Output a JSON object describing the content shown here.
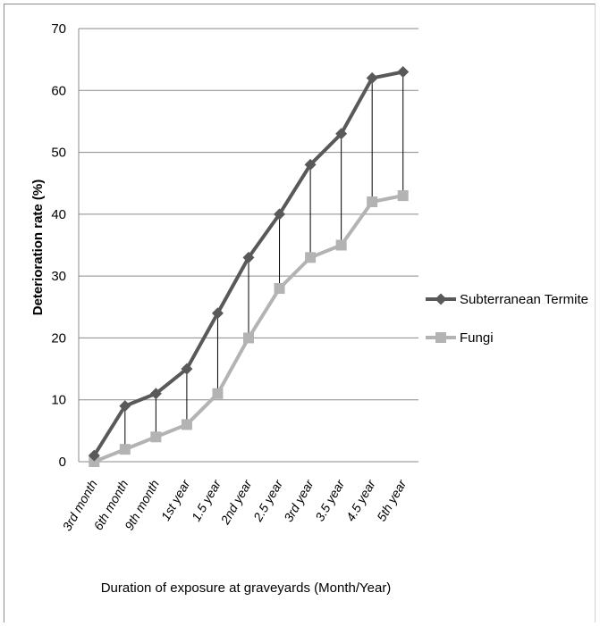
{
  "chart_data": {
    "type": "line",
    "categories": [
      "3rd month",
      "6th month",
      "9th month",
      "1st year",
      "1.5 year",
      "2nd year",
      "2.5 year",
      "3rd year",
      "3.5 year",
      "4.5 year",
      "5th year"
    ],
    "series": [
      {
        "name": "Subterranean Termite",
        "values": [
          1,
          9,
          11,
          15,
          24,
          33,
          40,
          48,
          53,
          62,
          63
        ],
        "color": "#595959",
        "marker": "diamond"
      },
      {
        "name": "Fungi",
        "values": [
          0,
          2,
          4,
          6,
          11,
          20,
          28,
          33,
          35,
          42,
          43
        ],
        "color": "#b3b3b3",
        "marker": "square"
      }
    ],
    "xlabel": "Duration of exposure at graveyards (Month/Year)",
    "ylabel": "Deterioration rate (%)",
    "ylim": [
      0,
      70
    ],
    "yticks": [
      0,
      10,
      20,
      30,
      40,
      50,
      60,
      70
    ],
    "grid": true,
    "legend_position": "right",
    "drop_lines": true
  }
}
